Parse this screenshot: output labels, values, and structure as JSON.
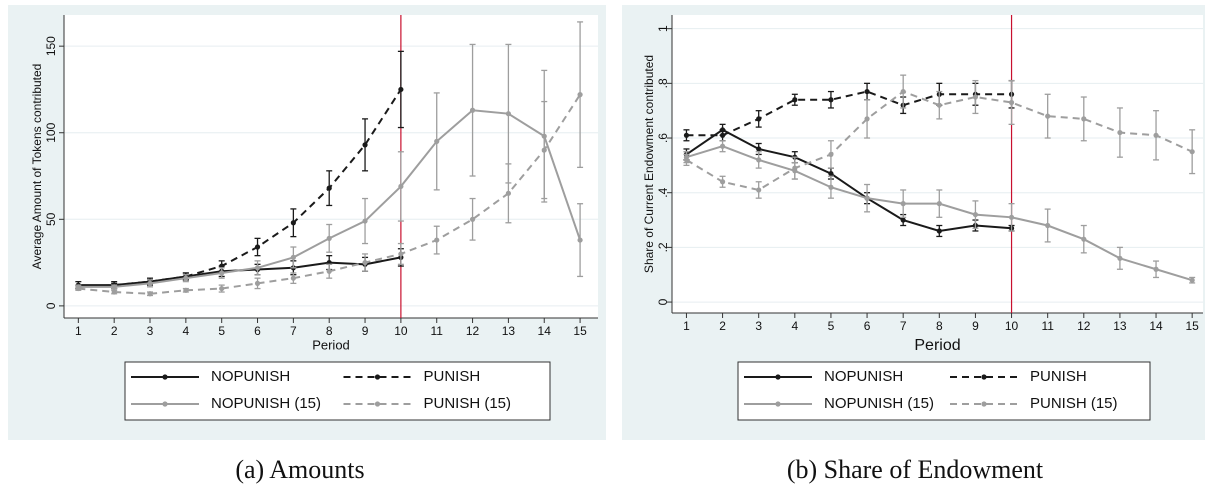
{
  "chart_data": [
    {
      "type": "line",
      "caption": "(a) Amounts",
      "xlabel": "Period",
      "ylabel": "Average Amount of Tokens contributed",
      "x": [
        1,
        2,
        3,
        4,
        5,
        6,
        7,
        8,
        9,
        10,
        11,
        12,
        13,
        14,
        15
      ],
      "xlim": [
        0.6,
        15.5
      ],
      "xticks": [
        1,
        2,
        3,
        4,
        5,
        6,
        7,
        8,
        9,
        10,
        11,
        12,
        13,
        14,
        15
      ],
      "ylim": [
        -7,
        168
      ],
      "yticks": [
        0,
        50,
        100,
        150
      ],
      "grid": true,
      "xline": 10,
      "xline_color": "#c8102e",
      "legend": "bottom",
      "series": [
        {
          "name": "NOPUNISH",
          "color": "#1a1a1a",
          "style": "solid",
          "values": [
            12,
            12,
            14,
            17,
            20,
            21,
            22,
            25,
            24,
            28,
            null,
            null,
            null,
            null,
            null
          ],
          "errors": [
            2,
            2,
            2,
            2,
            3,
            3,
            4,
            4,
            4,
            5,
            null,
            null,
            null,
            null,
            null
          ]
        },
        {
          "name": "PUNISH",
          "color": "#1a1a1a",
          "style": "dashed",
          "values": [
            11,
            12,
            14,
            17,
            23,
            34,
            48,
            68,
            93,
            125,
            null,
            null,
            null,
            null,
            null
          ],
          "errors": [
            1,
            1,
            1,
            2,
            3,
            5,
            8,
            10,
            15,
            22,
            null,
            null,
            null,
            null,
            null
          ]
        },
        {
          "name": "NOPUNISH (15)",
          "color": "#9e9e9e",
          "style": "solid",
          "values": [
            11,
            11,
            13,
            16,
            19,
            22,
            28,
            39,
            49,
            69,
            95,
            113,
            111,
            98,
            38
          ],
          "errors": [
            1,
            1,
            2,
            2,
            3,
            4,
            6,
            8,
            13,
            20,
            28,
            38,
            40,
            38,
            21
          ]
        },
        {
          "name": "PUNISH (15)",
          "color": "#9e9e9e",
          "style": "dashed",
          "values": [
            10,
            8,
            7,
            9,
            10,
            13,
            16,
            20,
            25,
            30,
            38,
            50,
            65,
            90,
            122
          ],
          "errors": [
            1,
            1,
            1,
            1,
            2,
            3,
            3,
            4,
            5,
            6,
            8,
            12,
            17,
            28,
            42
          ]
        }
      ]
    },
    {
      "type": "line",
      "caption": "(b) Share of Endowment",
      "xlabel": "Period",
      "ylabel": "Share of Current Endowment contributed",
      "x": [
        1,
        2,
        3,
        4,
        5,
        6,
        7,
        8,
        9,
        10,
        11,
        12,
        13,
        14,
        15
      ],
      "xlim": [
        0.6,
        15.3
      ],
      "xticks": [
        1,
        2,
        3,
        4,
        5,
        6,
        7,
        8,
        9,
        10,
        11,
        12,
        13,
        14,
        15
      ],
      "ylim": [
        -0.04,
        1.05
      ],
      "yticks": [
        0,
        {
          "value": 0.2,
          "label": ".2"
        },
        {
          "value": 0.4,
          "label": ".4"
        },
        {
          "value": 0.6,
          "label": ".6"
        },
        {
          "value": 0.8,
          "label": ".8"
        },
        1
      ],
      "grid": true,
      "xline": 10,
      "xline_color": "#c8102e",
      "legend": "bottom",
      "series": [
        {
          "name": "NOPUNISH",
          "color": "#1a1a1a",
          "style": "solid",
          "values": [
            0.54,
            0.63,
            0.56,
            0.53,
            0.47,
            0.38,
            0.3,
            0.26,
            0.28,
            0.27,
            null,
            null,
            null,
            null,
            null
          ],
          "errors": [
            0.02,
            0.02,
            0.02,
            0.02,
            0.02,
            0.02,
            0.02,
            0.02,
            0.02,
            0.01,
            null,
            null,
            null,
            null,
            null
          ]
        },
        {
          "name": "PUNISH",
          "color": "#1a1a1a",
          "style": "dashed",
          "values": [
            0.61,
            0.61,
            0.67,
            0.74,
            0.74,
            0.77,
            0.72,
            0.76,
            0.76,
            0.76,
            null,
            null,
            null,
            null,
            null
          ],
          "errors": [
            0.02,
            0.02,
            0.03,
            0.02,
            0.03,
            0.03,
            0.03,
            0.04,
            0.04,
            0.05,
            null,
            null,
            null,
            null,
            null
          ]
        },
        {
          "name": "NOPUNISH (15)",
          "color": "#9e9e9e",
          "style": "solid",
          "values": [
            0.53,
            0.57,
            0.52,
            0.48,
            0.42,
            0.38,
            0.36,
            0.36,
            0.32,
            0.31,
            0.28,
            0.23,
            0.16,
            0.12,
            0.08
          ],
          "errors": [
            0.02,
            0.02,
            0.03,
            0.03,
            0.04,
            0.05,
            0.05,
            0.05,
            0.05,
            0.05,
            0.06,
            0.05,
            0.04,
            0.03,
            0.01
          ]
        },
        {
          "name": "PUNISH (15)",
          "color": "#9e9e9e",
          "style": "dashed",
          "values": [
            0.52,
            0.44,
            0.41,
            0.49,
            0.54,
            0.67,
            0.77,
            0.72,
            0.75,
            0.73,
            0.68,
            0.67,
            0.62,
            0.61,
            0.55
          ],
          "errors": [
            0.02,
            0.02,
            0.03,
            0.04,
            0.05,
            0.07,
            0.06,
            0.05,
            0.06,
            0.08,
            0.08,
            0.08,
            0.09,
            0.09,
            0.08
          ]
        }
      ]
    }
  ]
}
